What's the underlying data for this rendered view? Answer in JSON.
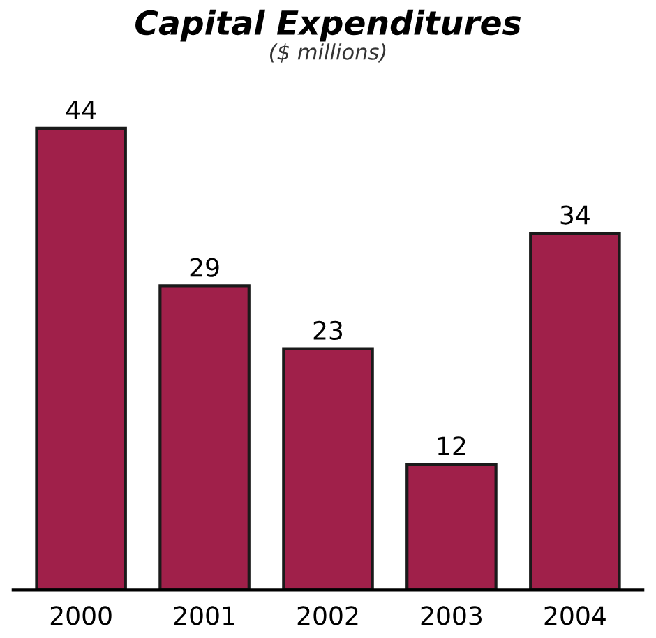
{
  "chart_data": {
    "type": "bar",
    "title": "Capital Expenditures",
    "subtitle": "($ millions)",
    "categories": [
      "2000",
      "2001",
      "2002",
      "2003",
      "2004"
    ],
    "values": [
      44,
      29,
      23,
      12,
      34
    ],
    "color": "#a0204a",
    "data_labels": true
  }
}
